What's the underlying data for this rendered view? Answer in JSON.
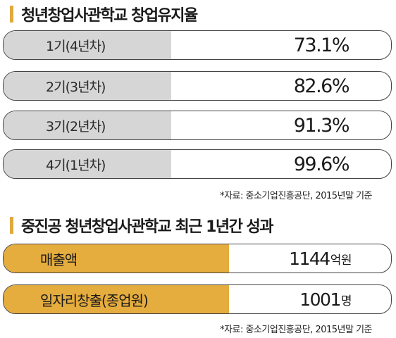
{
  "chart_data": [
    {
      "type": "table",
      "title": "청년창업사관학교 창업유지율",
      "categories": [
        "1기(4년차)",
        "2기(3년차)",
        "3기(2년차)",
        "4기(1년차)"
      ],
      "values": [
        "73.1%",
        "82.6%",
        "91.3%",
        "99.6%"
      ],
      "source": "*자료: 중소기업진흥공단, 2015년말 기준"
    },
    {
      "type": "table",
      "title": "중진공 청년창업사관학교 최근 1년간 성과",
      "categories": [
        "매출액",
        "일자리창출(종업원)"
      ],
      "values": [
        "1144",
        "1001"
      ],
      "units": [
        "억원",
        "명"
      ],
      "source": "*자료: 중소기업진흥공단, 2015년말 기준"
    }
  ],
  "colors": {
    "accent": "#e3a93d",
    "rate_label_bg": "#d6d6d6",
    "perf_label_bg": "#e5ac3e",
    "row_border": "#444444"
  }
}
